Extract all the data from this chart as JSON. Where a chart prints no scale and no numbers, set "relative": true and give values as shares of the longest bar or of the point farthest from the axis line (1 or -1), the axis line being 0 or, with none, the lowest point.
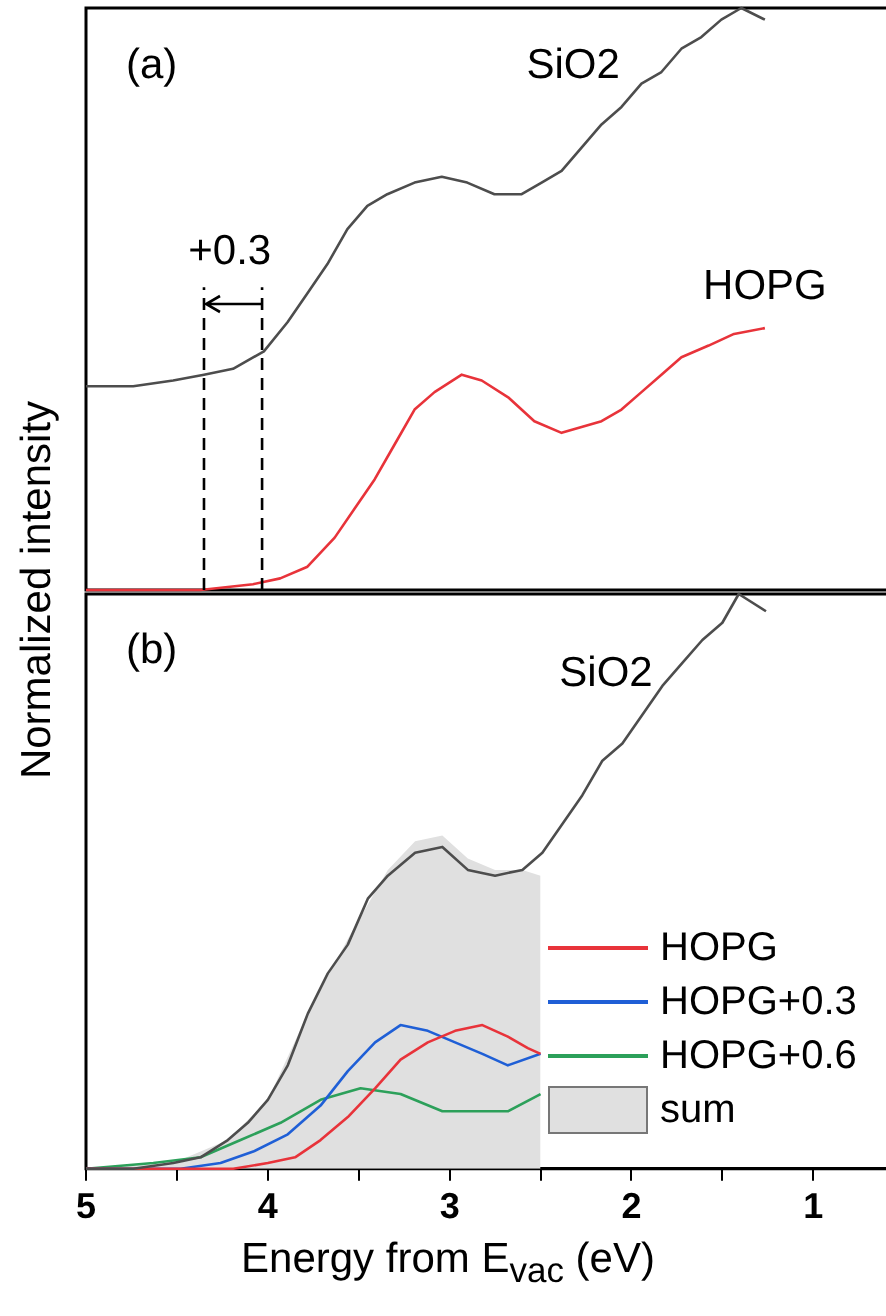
{
  "chart_data": [
    {
      "type": "line",
      "relative": true,
      "ylabel": "Normalized intensity",
      "xlim": [
        5,
        0.6
      ],
      "tick_labels": false,
      "annotations": [
        "(a)",
        "SiO2",
        "HOPG",
        "+0.3"
      ],
      "ref_lines": [
        {
          "axis": "x",
          "value": 4.35,
          "color": "#000000",
          "line_style": "dashed"
        },
        {
          "axis": "x",
          "value": 4.03,
          "color": "#000000",
          "line_style": "dashed"
        }
      ],
      "series": [
        {
          "color": "#4d4d4d",
          "x": [
            5.0,
            4.74,
            4.52,
            4.35,
            4.19,
            4.02,
            3.89,
            3.78,
            3.67,
            3.56,
            3.45,
            3.34,
            3.19,
            3.04,
            2.9,
            2.75,
            2.6,
            2.49,
            2.38,
            2.27,
            2.16,
            2.05,
            1.94,
            1.83,
            1.72,
            1.61,
            1.5,
            1.39,
            1.26
          ],
          "values": [
            0.35,
            0.35,
            0.36,
            0.37,
            0.38,
            0.41,
            0.46,
            0.51,
            0.56,
            0.62,
            0.66,
            0.68,
            0.7,
            0.71,
            0.7,
            0.68,
            0.68,
            0.7,
            0.72,
            0.76,
            0.8,
            0.83,
            0.87,
            0.89,
            0.93,
            0.95,
            0.98,
            1.0,
            0.98
          ]
        },
        {
          "color": "#e8333a",
          "x": [
            5.0,
            4.37,
            4.08,
            3.93,
            3.78,
            3.63,
            3.52,
            3.41,
            3.3,
            3.19,
            3.08,
            2.93,
            2.82,
            2.67,
            2.53,
            2.38,
            2.27,
            2.16,
            2.05,
            1.94,
            1.83,
            1.72,
            1.57,
            1.43,
            1.26
          ],
          "values": [
            0.0,
            0.0,
            0.01,
            0.02,
            0.04,
            0.09,
            0.14,
            0.19,
            0.25,
            0.31,
            0.34,
            0.37,
            0.36,
            0.33,
            0.29,
            0.27,
            0.28,
            0.29,
            0.31,
            0.34,
            0.37,
            0.4,
            0.42,
            0.44,
            0.45
          ]
        }
      ]
    },
    {
      "type": "line",
      "relative": true,
      "xlabel": "Energy from E$_{vac}$ (eV)",
      "xlim": [
        5,
        0.6
      ],
      "xticks": [
        5,
        {
          "value": 4.5,
          "label": null
        },
        4,
        {
          "value": 3.5,
          "label": null
        },
        3,
        {
          "value": 2.5,
          "label": null
        },
        2,
        {
          "value": 1.5,
          "label": null
        },
        1
      ],
      "tick_labels": "x",
      "legend": "right",
      "annotations": [
        "(b)",
        "SiO2"
      ],
      "series": [
        {
          "color": "#4d4d4d",
          "x": [
            5.0,
            4.74,
            4.52,
            4.37,
            4.22,
            4.11,
            4.0,
            3.89,
            3.78,
            3.67,
            3.56,
            3.45,
            3.34,
            3.19,
            3.04,
            2.9,
            2.75,
            2.6,
            2.49,
            2.38,
            2.27,
            2.16,
            2.05,
            1.94,
            1.83,
            1.72,
            1.61,
            1.5,
            1.41,
            1.26
          ],
          "values": [
            0.0,
            0.0,
            0.01,
            0.02,
            0.05,
            0.08,
            0.12,
            0.18,
            0.27,
            0.34,
            0.39,
            0.47,
            0.51,
            0.55,
            0.56,
            0.52,
            0.51,
            0.52,
            0.55,
            0.6,
            0.65,
            0.71,
            0.74,
            0.79,
            0.84,
            0.88,
            0.92,
            0.95,
            1.0,
            0.97
          ]
        },
        {
          "name": "HOPG",
          "color": "#e8333a",
          "x": [
            5.0,
            4.19,
            4.0,
            3.85,
            3.71,
            3.56,
            3.41,
            3.27,
            3.12,
            2.97,
            2.82,
            2.68,
            2.57,
            2.5
          ],
          "values": [
            0.0,
            0.0,
            0.01,
            0.02,
            0.05,
            0.09,
            0.14,
            0.19,
            0.22,
            0.24,
            0.25,
            0.23,
            0.21,
            0.2
          ]
        },
        {
          "name": "HOPG+0.3",
          "color": "#1f5fd6",
          "x": [
            5.0,
            4.48,
            4.26,
            4.08,
            3.89,
            3.71,
            3.56,
            3.41,
            3.27,
            3.12,
            2.97,
            2.82,
            2.68,
            2.5
          ],
          "values": [
            0.0,
            0.0,
            0.01,
            0.03,
            0.06,
            0.11,
            0.17,
            0.22,
            0.25,
            0.24,
            0.22,
            0.2,
            0.18,
            0.2
          ]
        },
        {
          "name": "HOPG+0.6",
          "color": "#2ca05a",
          "x": [
            5.0,
            4.63,
            4.37,
            4.15,
            3.93,
            3.71,
            3.49,
            3.27,
            3.04,
            2.9,
            2.68,
            2.5
          ],
          "values": [
            0.0,
            0.01,
            0.02,
            0.05,
            0.08,
            0.12,
            0.14,
            0.13,
            0.1,
            0.1,
            0.1,
            0.13
          ]
        },
        {
          "type": "area",
          "name": "sum",
          "color": "#e0e0e0",
          "x": [
            5.0,
            4.52,
            4.22,
            4.0,
            3.78,
            3.56,
            3.34,
            3.19,
            3.04,
            2.9,
            2.75,
            2.6,
            2.5
          ],
          "values": [
            0.0,
            0.01,
            0.05,
            0.12,
            0.27,
            0.4,
            0.52,
            0.57,
            0.58,
            0.54,
            0.52,
            0.52,
            0.51
          ]
        }
      ]
    }
  ]
}
